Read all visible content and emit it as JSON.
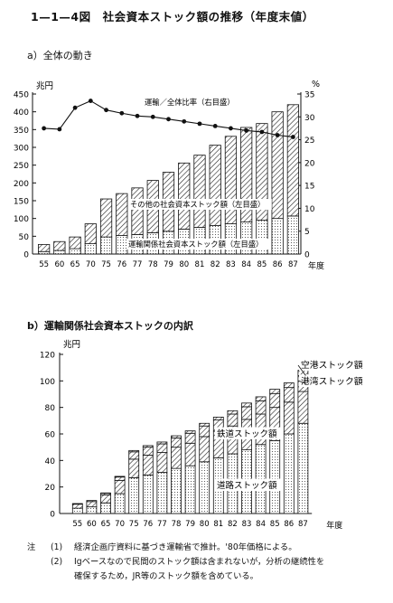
{
  "figure_title": "1—1—4図　社会資本ストック額の推移（年度末値）",
  "panel_a": {
    "title": "a）全体の動き"
  },
  "panel_b": {
    "title": "b）運輸関係社会資本ストックの内訳"
  },
  "chart_data": [
    {
      "type": "bar",
      "stacked": true,
      "categories": [
        "55",
        "60",
        "65",
        "70",
        "75",
        "76",
        "77",
        "78",
        "79",
        "80",
        "81",
        "82",
        "83",
        "84",
        "85",
        "86",
        "87"
      ],
      "xlabel": "年度",
      "ylabel": "兆円",
      "ylim": [
        0,
        450
      ],
      "yticks": [
        0,
        50,
        100,
        150,
        200,
        250,
        300,
        350,
        400,
        450
      ],
      "y2label": "%",
      "y2lim": [
        0,
        35
      ],
      "y2ticks": [
        0,
        5,
        10,
        15,
        20,
        25,
        30,
        35
      ],
      "series": [
        {
          "name": "運輸関係社会資本ストック額（左目盛）",
          "pattern": "dots",
          "values": [
            7,
            10,
            15,
            29,
            48,
            52,
            55,
            60,
            64,
            70,
            75,
            80,
            85,
            90,
            95,
            100,
            107
          ]
        },
        {
          "name": "その他の社会資本ストック額（左目盛）",
          "pattern": "hatch",
          "values": [
            20,
            25,
            33,
            56,
            107,
            118,
            131,
            147,
            166,
            186,
            203,
            226,
            246,
            266,
            272,
            300,
            313
          ]
        },
        {
          "name": "運輸／全体比率（右目盛）",
          "type": "line",
          "axis": "right",
          "values": [
            27.5,
            27.3,
            32.0,
            33.5,
            31.5,
            30.8,
            30.2,
            30.0,
            29.5,
            29.0,
            28.5,
            28.0,
            27.5,
            27.0,
            26.7,
            26.0,
            25.6
          ]
        }
      ],
      "grid": false
    },
    {
      "type": "bar",
      "stacked": true,
      "categories": [
        "55",
        "60",
        "65",
        "70",
        "75",
        "76",
        "77",
        "78",
        "79",
        "80",
        "81",
        "82",
        "83",
        "84",
        "85",
        "86",
        "87"
      ],
      "xlabel": "年度",
      "ylabel": "兆円",
      "ylim": [
        0,
        120
      ],
      "yticks": [
        0,
        20,
        40,
        60,
        80,
        100,
        120
      ],
      "series": [
        {
          "name": "道路ストック額",
          "pattern": "dots",
          "values": [
            4,
            5,
            8,
            15,
            27,
            29,
            31,
            34,
            36,
            39,
            42,
            45,
            48,
            52,
            55,
            60,
            68
          ]
        },
        {
          "name": "鉄道ストック額",
          "pattern": "hatch",
          "values": [
            3,
            4,
            6,
            10,
            14,
            15,
            15,
            16,
            17,
            19,
            20,
            21,
            23,
            23,
            25,
            24,
            24
          ]
        },
        {
          "name": "港湾ストック額",
          "pattern": "hatch",
          "values": [
            0.5,
            0.8,
            1.2,
            2.5,
            5.5,
            6,
            6.5,
            7,
            7.5,
            8,
            8.5,
            9,
            9.5,
            10,
            10.5,
            11,
            12
          ]
        },
        {
          "name": "空港ストック額",
          "pattern": "hatch",
          "values": [
            0,
            0,
            0.3,
            0.5,
            1,
            1.2,
            1.4,
            1.6,
            1.8,
            2,
            2.2,
            2.5,
            2.8,
            3,
            3.2,
            3.5,
            4
          ]
        }
      ],
      "grid": false
    }
  ],
  "notes": [
    {
      "mark": "注",
      "num": "(1)",
      "text": "経済企画庁資料に基づき運輸省で推計。'80年価格による。"
    },
    {
      "mark": "",
      "num": "(2)",
      "text": "Igベースなので民間のストック額は含まれないが，分析の継続性を"
    },
    {
      "mark": "",
      "num": "",
      "text": "確保するため，JR等のストック額を含めている。"
    }
  ]
}
